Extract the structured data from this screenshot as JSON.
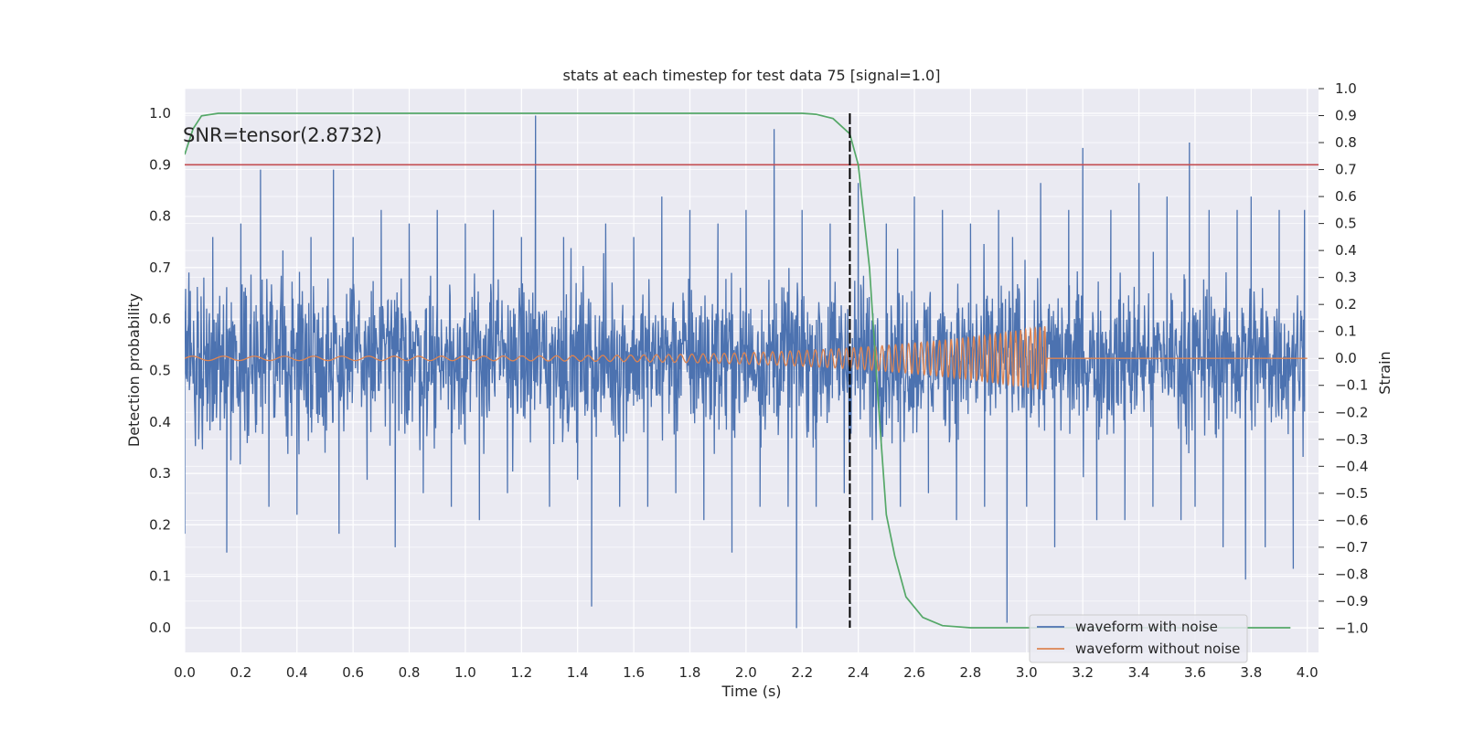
{
  "chart_data": {
    "type": "line",
    "title": "stats at each timestep for test data 75 [signal=1.0]",
    "xlabel": "Time (s)",
    "ylabel": "Detection probability",
    "y2label": "Strain",
    "xlim": [
      0.0,
      4.04
    ],
    "ylim": [
      -0.048,
      1.048
    ],
    "y2lim": [
      -1.09,
      1.0
    ],
    "x_ticks": [
      "0.0",
      "0.2",
      "0.4",
      "0.6",
      "0.8",
      "1.0",
      "1.2",
      "1.4",
      "1.6",
      "1.8",
      "2.0",
      "2.2",
      "2.4",
      "2.6",
      "2.8",
      "3.0",
      "3.2",
      "3.4",
      "3.6",
      "3.8",
      "4.0"
    ],
    "y_ticks": [
      "0.0",
      "0.1",
      "0.2",
      "0.3",
      "0.4",
      "0.5",
      "0.6",
      "0.7",
      "0.8",
      "0.9",
      "1.0"
    ],
    "y2_ticks": [
      "−1.0",
      "−0.9",
      "−0.8",
      "−0.7",
      "−0.6",
      "−0.5",
      "−0.4",
      "−0.3",
      "−0.2",
      "−0.1",
      "0.0",
      "0.1",
      "0.2",
      "0.3",
      "0.4",
      "0.5",
      "0.6",
      "0.7",
      "0.8",
      "0.9",
      "1.0"
    ],
    "grid": true,
    "legend_position": "lower-right",
    "annotation": "SNR=tensor(2.8732)",
    "threshold": 0.9,
    "merger_time": 2.37,
    "series": [
      {
        "name": "waveform with noise",
        "axis": "right",
        "color": "#4c72b0",
        "points": [
          [
            0.0,
            -0.65
          ],
          [
            0.02,
            0.25
          ],
          [
            0.05,
            -0.3
          ],
          [
            0.1,
            0.45
          ],
          [
            0.15,
            -0.72
          ],
          [
            0.2,
            0.5
          ],
          [
            0.27,
            0.7
          ],
          [
            0.3,
            -0.55
          ],
          [
            0.35,
            0.4
          ],
          [
            0.4,
            -0.58
          ],
          [
            0.45,
            0.45
          ],
          [
            0.5,
            -0.35
          ],
          [
            0.53,
            0.7
          ],
          [
            0.55,
            -0.65
          ],
          [
            0.6,
            0.45
          ],
          [
            0.65,
            -0.45
          ],
          [
            0.7,
            0.55
          ],
          [
            0.75,
            -0.7
          ],
          [
            0.8,
            0.5
          ],
          [
            0.85,
            -0.5
          ],
          [
            0.9,
            0.55
          ],
          [
            0.95,
            -0.55
          ],
          [
            1.0,
            0.5
          ],
          [
            1.05,
            -0.6
          ],
          [
            1.1,
            0.55
          ],
          [
            1.15,
            -0.5
          ],
          [
            1.2,
            0.45
          ],
          [
            1.25,
            0.9
          ],
          [
            1.3,
            -0.55
          ],
          [
            1.35,
            0.45
          ],
          [
            1.4,
            -0.45
          ],
          [
            1.45,
            -0.92
          ],
          [
            1.5,
            0.5
          ],
          [
            1.55,
            -0.55
          ],
          [
            1.6,
            0.45
          ],
          [
            1.65,
            -0.55
          ],
          [
            1.7,
            0.6
          ],
          [
            1.75,
            -0.5
          ],
          [
            1.8,
            0.55
          ],
          [
            1.85,
            -0.6
          ],
          [
            1.9,
            0.5
          ],
          [
            1.95,
            -0.72
          ],
          [
            2.0,
            0.55
          ],
          [
            2.05,
            -0.55
          ],
          [
            2.1,
            0.85
          ],
          [
            2.15,
            -0.55
          ],
          [
            2.18,
            -1.0
          ],
          [
            2.2,
            0.55
          ],
          [
            2.25,
            -0.55
          ],
          [
            2.3,
            0.5
          ],
          [
            2.35,
            -0.5
          ],
          [
            2.4,
            0.65
          ],
          [
            2.45,
            -0.6
          ],
          [
            2.5,
            0.5
          ],
          [
            2.55,
            -0.55
          ],
          [
            2.6,
            0.6
          ],
          [
            2.65,
            -0.5
          ],
          [
            2.7,
            0.55
          ],
          [
            2.75,
            -0.6
          ],
          [
            2.8,
            0.5
          ],
          [
            2.85,
            -0.55
          ],
          [
            2.9,
            0.55
          ],
          [
            2.93,
            -0.98
          ],
          [
            2.95,
            0.45
          ],
          [
            3.0,
            -0.55
          ],
          [
            3.05,
            0.65
          ],
          [
            3.1,
            -0.7
          ],
          [
            3.15,
            0.55
          ],
          [
            3.2,
            0.78
          ],
          [
            3.25,
            -0.6
          ],
          [
            3.3,
            0.55
          ],
          [
            3.35,
            -0.6
          ],
          [
            3.4,
            0.65
          ],
          [
            3.45,
            -0.55
          ],
          [
            3.5,
            0.6
          ],
          [
            3.55,
            -0.6
          ],
          [
            3.58,
            0.8
          ],
          [
            3.6,
            -0.55
          ],
          [
            3.65,
            0.55
          ],
          [
            3.7,
            -0.7
          ],
          [
            3.75,
            0.55
          ],
          [
            3.78,
            -0.82
          ],
          [
            3.8,
            0.6
          ],
          [
            3.85,
            -0.7
          ],
          [
            3.9,
            0.55
          ],
          [
            3.95,
            -0.78
          ],
          [
            3.99,
            0.55
          ]
        ]
      },
      {
        "name": "waveform without noise",
        "axis": "right",
        "color": "#dd8452",
        "chirp": {
          "start": 0.0,
          "merger": 3.07,
          "end": 4.0,
          "start_amplitude": 0.008,
          "peak_amplitude": 0.12,
          "start_freq_hz": 9,
          "end_freq_hz": 60
        }
      },
      {
        "axis": "left",
        "color": "#55a868",
        "points": [
          [
            0.0,
            0.92
          ],
          [
            0.03,
            0.97
          ],
          [
            0.06,
            0.995
          ],
          [
            0.12,
            1.0
          ],
          [
            0.5,
            1.0
          ],
          [
            1.0,
            1.0
          ],
          [
            1.5,
            1.0
          ],
          [
            2.0,
            1.0
          ],
          [
            2.2,
            1.0
          ],
          [
            2.25,
            0.998
          ],
          [
            2.31,
            0.99
          ],
          [
            2.37,
            0.96
          ],
          [
            2.4,
            0.9
          ],
          [
            2.44,
            0.7
          ],
          [
            2.47,
            0.45
          ],
          [
            2.5,
            0.22
          ],
          [
            2.53,
            0.14
          ],
          [
            2.57,
            0.06
          ],
          [
            2.63,
            0.02
          ],
          [
            2.7,
            0.004
          ],
          [
            2.8,
            0.0
          ],
          [
            3.2,
            0.0
          ],
          [
            3.6,
            0.0
          ],
          [
            3.94,
            0.0
          ]
        ]
      }
    ]
  }
}
